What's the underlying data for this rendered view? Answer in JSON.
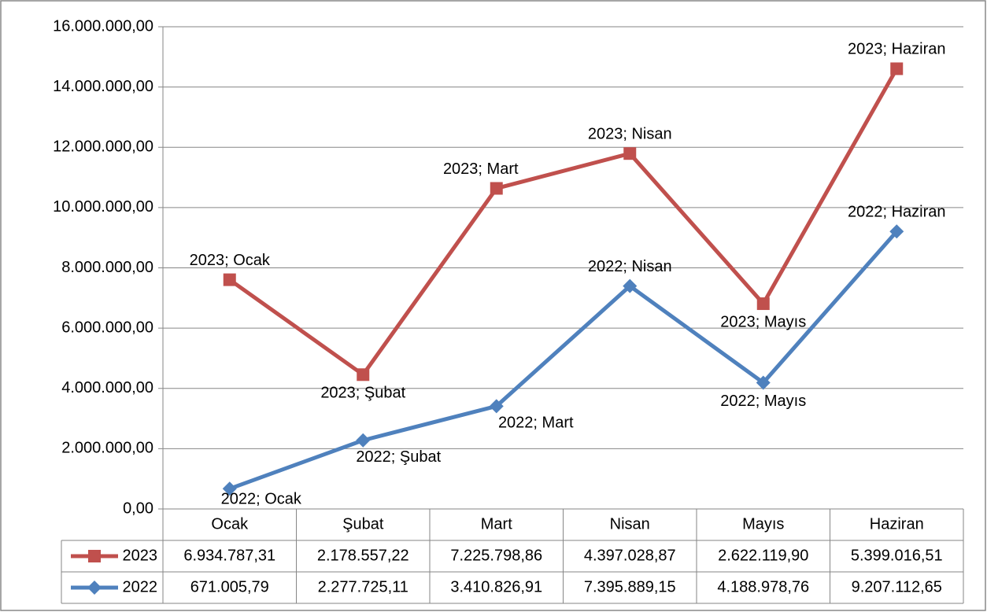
{
  "chart_data": {
    "type": "line",
    "stacked": true,
    "categories": [
      "Ocak",
      "Şubat",
      "Mart",
      "Nisan",
      "Mayıs",
      "Haziran"
    ],
    "series": [
      {
        "name": "2022",
        "color": "#4f81bd",
        "marker": "diamond",
        "values": [
          671005.79,
          2277725.11,
          3410826.91,
          7395889.15,
          4188978.76,
          9207112.65
        ],
        "value_labels": [
          "671.005,79",
          "2.277.725,11",
          "3.410.826,91",
          "7.395.889,15",
          "4.188.978,76",
          "9.207.112,65"
        ],
        "point_labels": [
          "2022; Ocak",
          "2022; Şubat",
          "2022; Mart",
          "2022; Nisan",
          "2022; Mayıs",
          "2022; Haziran"
        ]
      },
      {
        "name": "2023",
        "color": "#c0504d",
        "marker": "square",
        "values": [
          6934787.31,
          2178557.22,
          7225798.86,
          4397028.87,
          2622119.9,
          5399016.51
        ],
        "value_labels": [
          "6.934.787,31",
          "2.178.557,22",
          "7.225.798,86",
          "4.397.028,87",
          "2.622.119,90",
          "5.399.016,51"
        ],
        "point_labels": [
          "2023; Ocak",
          "2023; Şubat",
          "2023; Mart",
          "2023; Nisan",
          "2023; Mayıs",
          "2023; Haziran"
        ]
      }
    ],
    "ylim": [
      0,
      16000000
    ],
    "yticks": [
      {
        "value": 0,
        "label": "0,00"
      },
      {
        "value": 2000000,
        "label": "2.000.000,00"
      },
      {
        "value": 4000000,
        "label": "4.000.000,00"
      },
      {
        "value": 6000000,
        "label": "6.000.000,00"
      },
      {
        "value": 8000000,
        "label": "8.000.000,00"
      },
      {
        "value": 10000000,
        "label": "10.000.000,00"
      },
      {
        "value": 12000000,
        "label": "12.000.000,00"
      },
      {
        "value": 14000000,
        "label": "14.000.000,00"
      },
      {
        "value": 16000000,
        "label": "16.000.000,00"
      }
    ],
    "grid": true,
    "data_table": true
  }
}
